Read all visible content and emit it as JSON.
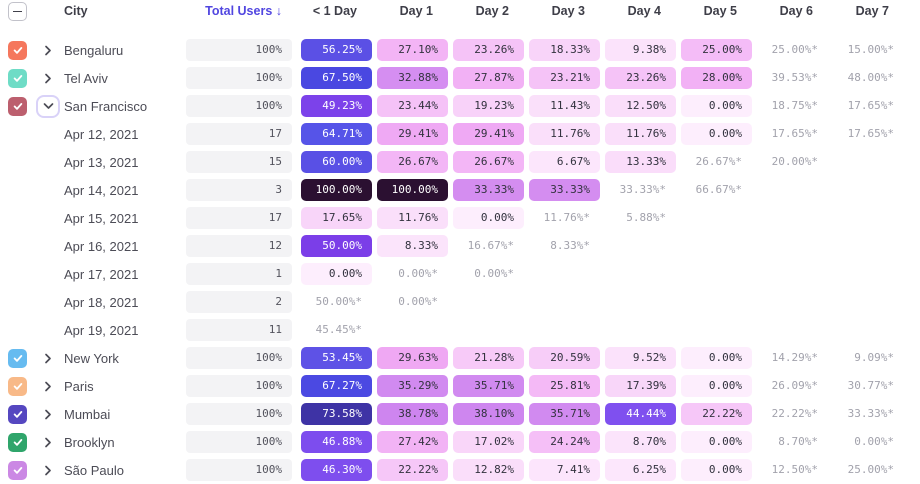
{
  "header": {
    "select_all_state": "indeterminate",
    "columns": [
      "City",
      "Total Users ↓",
      "< 1 Day",
      "Day 1",
      "Day 2",
      "Day 3",
      "Day 4",
      "Day 5",
      "Day 6",
      "Day 7"
    ],
    "sorted_by": "Total Users",
    "sort_direction": "descending"
  },
  "colors": {
    "accent": "#5146e0",
    "header_text": "#3e3e48",
    "label_text": "#4c4c56",
    "cell_dark_text": "#32323e",
    "cell_light_text": "#ffffff",
    "partial_text": "#a2a2ac",
    "total_cell_bg": "#f3f3f5",
    "expanded_ring": "#d9d2f8",
    "white_text_threshold": 43,
    "heatmap_stops": [
      [
        0,
        "#fdeefd"
      ],
      [
        7,
        "#fce6fc"
      ],
      [
        12,
        "#fadffa"
      ],
      [
        19,
        "#f8d3f9"
      ],
      [
        24,
        "#f5c0f7"
      ],
      [
        28,
        "#f2b1f5"
      ],
      [
        30,
        "#eea6f3"
      ],
      [
        31,
        "#da92f2"
      ],
      [
        34,
        "#d28cf0"
      ],
      [
        42,
        "#cb81ee"
      ],
      [
        43,
        "#8052f0"
      ],
      [
        47,
        "#7d4dee"
      ],
      [
        50,
        "#7b3ee8"
      ],
      [
        53,
        "#5e52e6"
      ],
      [
        58,
        "#5a4fe4"
      ],
      [
        65,
        "#5654e8"
      ],
      [
        68,
        "#4846e0"
      ],
      [
        75,
        "#3b2e96"
      ],
      [
        100,
        "#2b1031"
      ]
    ]
  },
  "rows": [
    {
      "type": "city",
      "label": "Bengaluru",
      "checked": true,
      "checkbox_color": "#f5775d",
      "expanded": false,
      "total": "100%",
      "cells": [
        "56.25%",
        "27.10%",
        "23.26%",
        "18.33%",
        "9.38%",
        "25.00%",
        "25.00%*",
        "15.00%*"
      ]
    },
    {
      "type": "city",
      "label": "Tel Aviv",
      "checked": true,
      "checkbox_color": "#6edcc6",
      "expanded": false,
      "total": "100%",
      "cells": [
        "67.50%",
        "32.88%",
        "27.87%",
        "23.21%",
        "23.26%",
        "28.00%",
        "39.53%*",
        "48.00%*"
      ]
    },
    {
      "type": "city",
      "label": "San Francisco",
      "checked": true,
      "checkbox_color": "#bc5f6e",
      "expanded": true,
      "total": "100%",
      "cells": [
        "49.23%",
        "23.44%",
        "19.23%",
        "11.43%",
        "12.50%",
        "0.00%",
        "18.75%*",
        "17.65%*"
      ]
    },
    {
      "type": "cohort",
      "label": "Apr 12, 2021",
      "total": "17",
      "cells": [
        "64.71%",
        "29.41%",
        "29.41%",
        "11.76%",
        "11.76%",
        "0.00%",
        "17.65%*",
        "17.65%*"
      ]
    },
    {
      "type": "cohort",
      "label": "Apr 13, 2021",
      "total": "15",
      "cells": [
        "60.00%",
        "26.67%",
        "26.67%",
        "6.67%",
        "13.33%",
        "26.67%*",
        "20.00%*",
        ""
      ]
    },
    {
      "type": "cohort",
      "label": "Apr 14, 2021",
      "total": "3",
      "cells": [
        "100.00%",
        "100.00%",
        "33.33%",
        "33.33%",
        "33.33%*",
        "66.67%*",
        "",
        ""
      ]
    },
    {
      "type": "cohort",
      "label": "Apr 15, 2021",
      "total": "17",
      "cells": [
        "17.65%",
        "11.76%",
        "0.00%",
        "11.76%*",
        "5.88%*",
        "",
        "",
        ""
      ]
    },
    {
      "type": "cohort",
      "label": "Apr 16, 2021",
      "total": "12",
      "cells": [
        "50.00%",
        "8.33%",
        "16.67%*",
        "8.33%*",
        "",
        "",
        "",
        ""
      ]
    },
    {
      "type": "cohort",
      "label": "Apr 17, 2021",
      "total": "1",
      "cells": [
        "0.00%",
        "0.00%*",
        "0.00%*",
        "",
        "",
        "",
        "",
        ""
      ]
    },
    {
      "type": "cohort",
      "label": "Apr 18, 2021",
      "total": "2",
      "cells": [
        "50.00%*",
        "0.00%*",
        "",
        "",
        "",
        "",
        "",
        ""
      ]
    },
    {
      "type": "cohort",
      "label": "Apr 19, 2021",
      "total": "11",
      "cells": [
        "45.45%*",
        "",
        "",
        "",
        "",
        "",
        "",
        ""
      ]
    },
    {
      "type": "city",
      "label": "New York",
      "checked": true,
      "checkbox_color": "#66bbf0",
      "expanded": false,
      "total": "100%",
      "cells": [
        "53.45%",
        "29.63%",
        "21.28%",
        "20.59%",
        "9.52%",
        "0.00%",
        "14.29%*",
        "9.09%*"
      ]
    },
    {
      "type": "city",
      "label": "Paris",
      "checked": true,
      "checkbox_color": "#f8b988",
      "expanded": false,
      "total": "100%",
      "cells": [
        "67.27%",
        "35.29%",
        "35.71%",
        "25.81%",
        "17.39%",
        "0.00%",
        "26.09%*",
        "30.77%*"
      ]
    },
    {
      "type": "city",
      "label": "Mumbai",
      "checked": true,
      "checkbox_color": "#5547c0",
      "expanded": false,
      "total": "100%",
      "cells": [
        "73.58%",
        "38.78%",
        "38.10%",
        "35.71%",
        "44.44%",
        "22.22%",
        "22.22%*",
        "33.33%*"
      ]
    },
    {
      "type": "city",
      "label": "Brooklyn",
      "checked": true,
      "checkbox_color": "#2fa56b",
      "expanded": false,
      "total": "100%",
      "cells": [
        "46.88%",
        "27.42%",
        "17.02%",
        "24.24%",
        "8.70%",
        "0.00%",
        "8.70%*",
        "0.00%*"
      ]
    },
    {
      "type": "city",
      "label": "São Paulo",
      "checked": true,
      "checkbox_color": "#cb88e4",
      "expanded": false,
      "total": "100%",
      "cells": [
        "46.30%",
        "22.22%",
        "12.82%",
        "7.41%",
        "6.25%",
        "0.00%",
        "12.50%*",
        "25.00%*"
      ]
    }
  ]
}
